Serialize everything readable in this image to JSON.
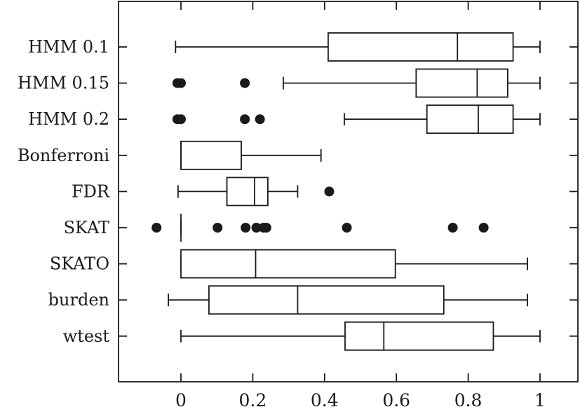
{
  "chart_data": {
    "type": "boxplot",
    "orientation": "horizontal",
    "xlim": [
      -0.17,
      1.1
    ],
    "xticks": [
      0,
      0.2,
      0.4,
      0.6,
      0.8,
      1
    ],
    "xtick_labels": [
      "0",
      "0.2",
      "0.4",
      "0.6",
      "0.8",
      "1"
    ],
    "categories": [
      "HMM 0.1",
      "HMM 0.15",
      "HMM 0.2",
      "Bonferroni",
      "FDR",
      "SKAT",
      "SKATO",
      "burden",
      "wtest"
    ],
    "series": [
      {
        "label": "HMM 0.1",
        "whisker_low": -0.015,
        "q1": 0.41,
        "median": 0.77,
        "q3": 0.925,
        "whisker_high": 1.0,
        "outliers": []
      },
      {
        "label": "HMM 0.15",
        "whisker_low": 0.285,
        "q1": 0.655,
        "median": 0.825,
        "q3": 0.91,
        "whisker_high": 1.0,
        "outliers": [
          -0.01,
          0.0,
          0.178
        ]
      },
      {
        "label": "HMM 0.2",
        "whisker_low": 0.455,
        "q1": 0.685,
        "median": 0.828,
        "q3": 0.925,
        "whisker_high": 1.0,
        "outliers": [
          -0.01,
          0.0,
          0.178,
          0.22
        ]
      },
      {
        "label": "Bonferroni",
        "whisker_low": 0.0,
        "q1": 0.0,
        "median": 0.0,
        "q3": 0.168,
        "whisker_high": 0.39,
        "outliers": []
      },
      {
        "label": "FDR",
        "whisker_low": -0.008,
        "q1": 0.128,
        "median": 0.205,
        "q3": 0.242,
        "whisker_high": 0.325,
        "outliers": [
          0.413
        ]
      },
      {
        "label": "SKAT",
        "whisker_low": 0.0,
        "q1": 0.0,
        "median": 0.0,
        "q3": 0.0,
        "whisker_high": 0.0,
        "outliers": [
          -0.068,
          0.102,
          0.18,
          0.21,
          0.23,
          0.238,
          0.462,
          0.757,
          0.843
        ]
      },
      {
        "label": "SKATO",
        "whisker_low": 0.0,
        "q1": 0.0,
        "median": 0.208,
        "q3": 0.597,
        "whisker_high": 0.965,
        "outliers": []
      },
      {
        "label": "burden",
        "whisker_low": -0.035,
        "q1": 0.078,
        "median": 0.325,
        "q3": 0.732,
        "whisker_high": 0.965,
        "outliers": []
      },
      {
        "label": "wtest",
        "whisker_low": 0.0,
        "q1": 0.457,
        "median": 0.565,
        "q3": 0.87,
        "whisker_high": 1.0,
        "outliers": []
      }
    ],
    "title": "",
    "xlabel": "",
    "ylabel": "",
    "grid": false,
    "legend": "none"
  }
}
